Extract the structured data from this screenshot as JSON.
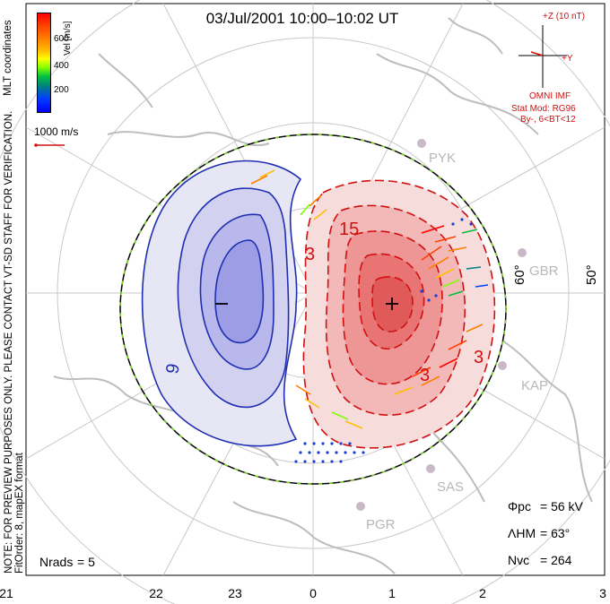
{
  "chart_data": {
    "type": "polar-convection-map",
    "title": "03/Jul/2001  10:00–10:02 UT",
    "coordinates_label": "MLT coordinates",
    "note_line1": "NOTE: FOR PREVIEW PURPOSES ONLY. PLEASE CONTACT VT-SD STAFF FOR VERIFICATION.",
    "note_line2": "FitOrder: 8,  mapEX format",
    "colorbar": {
      "label": "Vel [m/s]",
      "ticks": [
        "600",
        "400",
        "200"
      ],
      "tick_values": [
        600,
        400,
        200
      ]
    },
    "reference_vector": "1000 m/s",
    "imf": {
      "z_label": "+Z (10 nT)",
      "y_label": "+Y",
      "title": "OMNI IMF",
      "model": "Stat Mod: RG96",
      "condition": "By-, 6<BT<12"
    },
    "latitude_labels": [
      "60°",
      "50°"
    ],
    "stations": [
      "PYK",
      "GBR",
      "KAP",
      "SAS",
      "PGR"
    ],
    "cells": [
      {
        "sign": "−",
        "contour_label": "9"
      },
      {
        "sign": "+",
        "contour_labels": [
          "15",
          "3",
          "3",
          "3"
        ]
      }
    ],
    "stats": {
      "phi_pc_label": "Φpc",
      "phi_pc_value": "= 56 kV",
      "lambda_label": "ΛHM",
      "lambda_value": "= 63°",
      "nvc_label": "Nvc",
      "nvc_value": "= 264",
      "nrads_label": "Nrads",
      "nrads_value": "= 5"
    },
    "mlt_ticks": [
      "21",
      "22",
      "23",
      "0",
      "1",
      "2",
      "3"
    ]
  }
}
